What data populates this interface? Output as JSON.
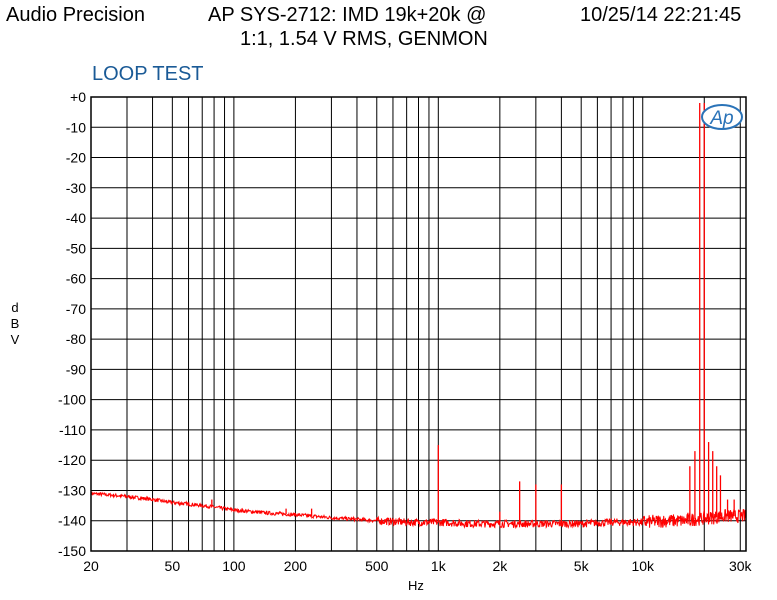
{
  "header": {
    "brand": "Audio Precision",
    "title_line1": "AP SYS-2712: IMD 19k+20k @",
    "title_line2": "1:1, 1.54 V RMS, GENMON",
    "timestamp": "10/25/14 22:21:45"
  },
  "chart_data": {
    "type": "line",
    "title": "AP SYS-2712: IMD 19k+20k @ 1:1, 1.54 V RMS, GENMON",
    "subtitle": "LOOP TEST",
    "xlabel": "Hz",
    "ylabel": "dBV",
    "ylabel_letters": [
      "d",
      "B",
      "V"
    ],
    "x_scale": "log",
    "xlim": [
      20,
      32000
    ],
    "ylim": [
      -150,
      0
    ],
    "grid": true,
    "logo": "Ap",
    "xticks": [
      {
        "value": 20,
        "label": "20"
      },
      {
        "value": 50,
        "label": "50"
      },
      {
        "value": 100,
        "label": "100"
      },
      {
        "value": 200,
        "label": "200"
      },
      {
        "value": 500,
        "label": "500"
      },
      {
        "value": 1000,
        "label": "1k"
      },
      {
        "value": 2000,
        "label": "2k"
      },
      {
        "value": 5000,
        "label": "5k"
      },
      {
        "value": 10000,
        "label": "10k"
      },
      {
        "value": 30000,
        "label": "30k"
      }
    ],
    "yticks": [
      {
        "value": 0,
        "label": "+0"
      },
      {
        "value": -10,
        "label": "-10"
      },
      {
        "value": -20,
        "label": "-20"
      },
      {
        "value": -30,
        "label": "-30"
      },
      {
        "value": -40,
        "label": "-40"
      },
      {
        "value": -50,
        "label": "-50"
      },
      {
        "value": -60,
        "label": "-60"
      },
      {
        "value": -70,
        "label": "-70"
      },
      {
        "value": -80,
        "label": "-80"
      },
      {
        "value": -90,
        "label": "-90"
      },
      {
        "value": -100,
        "label": "-100"
      },
      {
        "value": -110,
        "label": "-110"
      },
      {
        "value": -120,
        "label": "-120"
      },
      {
        "value": -130,
        "label": "-130"
      },
      {
        "value": -140,
        "label": "-140"
      },
      {
        "value": -150,
        "label": "-150"
      }
    ],
    "series": [
      {
        "color": "#ff0000",
        "noise_floor": {
          "x": [
            20,
            25,
            30,
            40,
            50,
            60,
            70,
            80,
            90,
            100,
            150,
            200,
            300,
            500,
            700,
            1000,
            1500,
            2000,
            3000,
            5000,
            7000,
            10000,
            13000,
            16000,
            18000,
            22000,
            25000,
            32000
          ],
          "y": [
            -131,
            -131.5,
            -132,
            -133,
            -134,
            -134.5,
            -135,
            -135.5,
            -136,
            -136.5,
            -137.5,
            -138,
            -139,
            -140,
            -140.5,
            -140.5,
            -141,
            -141,
            -141,
            -141,
            -140.5,
            -140.5,
            -140,
            -140,
            -139.5,
            -139,
            -138.5,
            -138.5
          ]
        },
        "peaks": [
          {
            "x": 60,
            "y": -135
          },
          {
            "x": 78,
            "y": -133
          },
          {
            "x": 180,
            "y": -136
          },
          {
            "x": 240,
            "y": -136
          },
          {
            "x": 1000,
            "y": -115
          },
          {
            "x": 2000,
            "y": -137
          },
          {
            "x": 2500,
            "y": -127
          },
          {
            "x": 3000,
            "y": -128
          },
          {
            "x": 4000,
            "y": -128
          },
          {
            "x": 17000,
            "y": -122
          },
          {
            "x": 18000,
            "y": -117
          },
          {
            "x": 19000,
            "y": -2
          },
          {
            "x": 20000,
            "y": -2
          },
          {
            "x": 21000,
            "y": -114
          },
          {
            "x": 22000,
            "y": -117
          },
          {
            "x": 23000,
            "y": -122
          },
          {
            "x": 24000,
            "y": -125
          },
          {
            "x": 26000,
            "y": -133
          },
          {
            "x": 28000,
            "y": -133
          }
        ]
      }
    ]
  }
}
